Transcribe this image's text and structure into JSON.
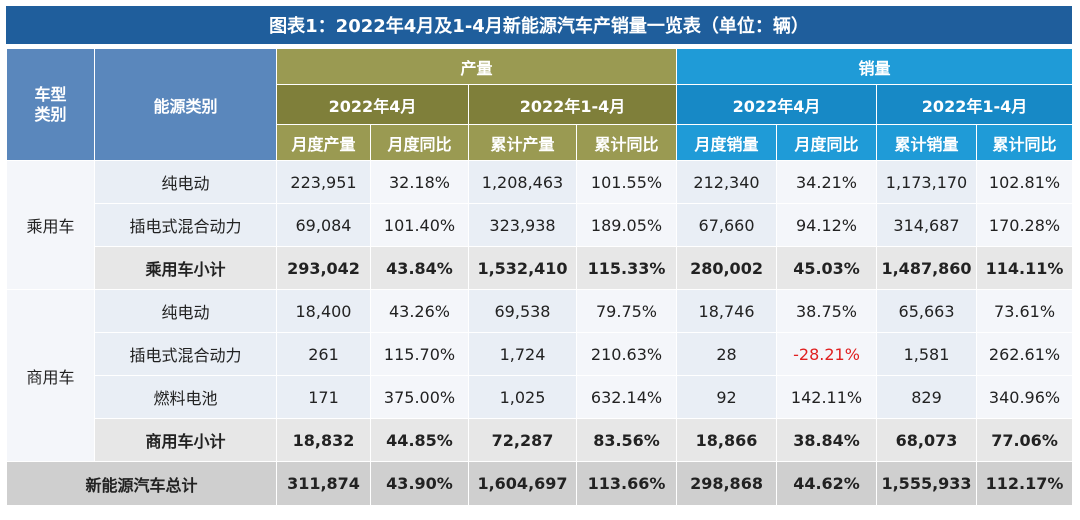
{
  "title": "图表1：2022年4月及1-4月新能源汽车产销量一览表（单位：辆）",
  "headers": {
    "vehicle_type": "车型\n类别",
    "energy_type": "能源类别",
    "production": "产量",
    "sales": "销量",
    "apr": "2022年4月",
    "jan_apr": "2022年1-4月",
    "monthly_production": "月度产量",
    "monthly_yoy": "月度同比",
    "cumulative_production": "累计产量",
    "cumulative_yoy": "累计同比",
    "monthly_sales": "月度销量",
    "cumulative_sales": "累计销量"
  },
  "groups": [
    {
      "name": "乘用车",
      "rows": [
        {
          "energy": "纯电动",
          "v": [
            "223,951",
            "32.18%",
            "1,208,463",
            "101.55%",
            "212,340",
            "34.21%",
            "1,173,170",
            "102.81%"
          ]
        },
        {
          "energy": "插电式混合动力",
          "v": [
            "69,084",
            "101.40%",
            "323,938",
            "189.05%",
            "67,660",
            "94.12%",
            "314,687",
            "170.28%"
          ]
        }
      ],
      "subtotal": {
        "label": "乘用车小计",
        "v": [
          "293,042",
          "43.84%",
          "1,532,410",
          "115.33%",
          "280,002",
          "45.03%",
          "1,487,860",
          "114.11%"
        ]
      }
    },
    {
      "name": "商用车",
      "rows": [
        {
          "energy": "纯电动",
          "v": [
            "18,400",
            "43.26%",
            "69,538",
            "79.75%",
            "18,746",
            "38.75%",
            "65,663",
            "73.61%"
          ]
        },
        {
          "energy": "插电式混合动力",
          "v": [
            "261",
            "115.70%",
            "1,724",
            "210.63%",
            "28",
            "-28.21%",
            "1,581",
            "262.61%"
          ]
        },
        {
          "energy": "燃料电池",
          "v": [
            "171",
            "375.00%",
            "1,025",
            "632.14%",
            "92",
            "142.11%",
            "829",
            "340.96%"
          ]
        }
      ],
      "subtotal": {
        "label": "商用车小计",
        "v": [
          "18,832",
          "44.85%",
          "72,287",
          "83.56%",
          "18,866",
          "38.84%",
          "68,073",
          "77.06%"
        ]
      }
    }
  ],
  "total": {
    "label": "新能源汽车总计",
    "v": [
      "311,874",
      "43.90%",
      "1,604,697",
      "113.66%",
      "298,868",
      "44.62%",
      "1,555,933",
      "112.17%"
    ]
  }
}
